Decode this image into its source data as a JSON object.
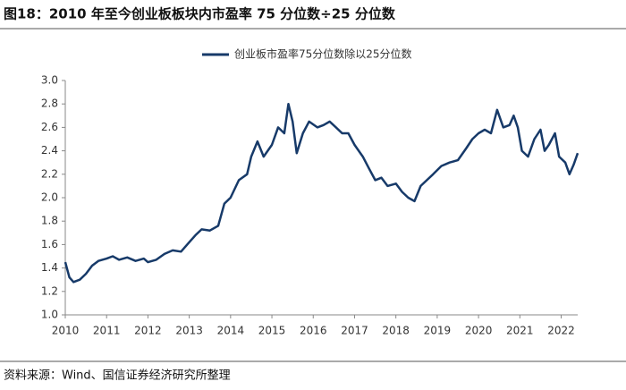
{
  "chart_data": {
    "type": "line",
    "title": "图18：2010 年至今创业板板块内市盈率 75 分位数÷25 分位数",
    "source": "资料来源：Wind、国信证券经济研究所整理",
    "legend": "top",
    "xlim": [
      2010,
      2022.4
    ],
    "xticks": [
      2010,
      2011,
      2012,
      2013,
      2014,
      2015,
      2016,
      2017,
      2018,
      2019,
      2020,
      2021,
      2022
    ],
    "ylim": [
      1.0,
      3.0
    ],
    "yticks": [
      {
        "value": 1.0,
        "label": "1.0"
      },
      1.2,
      1.4,
      1.6,
      1.8,
      {
        "value": 2.0,
        "label": "2.0"
      },
      2.2,
      2.4,
      2.6,
      2.8,
      {
        "value": 3.0,
        "label": "3.0"
      }
    ],
    "x": [
      2010.0,
      2010.1,
      2010.2,
      2010.35,
      2010.5,
      2010.65,
      2010.8,
      2011.0,
      2011.15,
      2011.3,
      2011.5,
      2011.7,
      2011.9,
      2012.0,
      2012.2,
      2012.4,
      2012.6,
      2012.8,
      2013.0,
      2013.15,
      2013.3,
      2013.5,
      2013.7,
      2013.85,
      2014.0,
      2014.2,
      2014.4,
      2014.5,
      2014.65,
      2014.8,
      2015.0,
      2015.15,
      2015.3,
      2015.4,
      2015.5,
      2015.6,
      2015.75,
      2015.9,
      2016.1,
      2016.25,
      2016.4,
      2016.55,
      2016.7,
      2016.85,
      2017.0,
      2017.2,
      2017.35,
      2017.5,
      2017.65,
      2017.8,
      2018.0,
      2018.15,
      2018.3,
      2018.45,
      2018.6,
      2018.75,
      2018.9,
      2019.1,
      2019.3,
      2019.5,
      2019.7,
      2019.85,
      2020.0,
      2020.15,
      2020.3,
      2020.45,
      2020.6,
      2020.75,
      2020.85,
      2020.95,
      2021.05,
      2021.2,
      2021.35,
      2021.5,
      2021.6,
      2021.7,
      2021.85,
      2021.95,
      2022.1,
      2022.2,
      2022.3,
      2022.4
    ],
    "series": [
      {
        "name": "创业板市盈率75分位数除以25分位数",
        "color": "#173a69",
        "values": [
          1.45,
          1.32,
          1.28,
          1.3,
          1.35,
          1.42,
          1.46,
          1.48,
          1.5,
          1.47,
          1.49,
          1.46,
          1.48,
          1.45,
          1.47,
          1.52,
          1.55,
          1.54,
          1.62,
          1.68,
          1.73,
          1.72,
          1.76,
          1.95,
          2.0,
          2.15,
          2.2,
          2.35,
          2.48,
          2.35,
          2.45,
          2.6,
          2.55,
          2.8,
          2.65,
          2.38,
          2.55,
          2.65,
          2.6,
          2.62,
          2.65,
          2.6,
          2.55,
          2.55,
          2.45,
          2.35,
          2.25,
          2.15,
          2.17,
          2.1,
          2.12,
          2.05,
          2.0,
          1.97,
          2.1,
          2.15,
          2.2,
          2.27,
          2.3,
          2.32,
          2.42,
          2.5,
          2.55,
          2.58,
          2.55,
          2.75,
          2.6,
          2.62,
          2.7,
          2.6,
          2.4,
          2.35,
          2.5,
          2.58,
          2.4,
          2.45,
          2.55,
          2.35,
          2.3,
          2.2,
          2.28,
          2.38
        ]
      }
    ]
  }
}
